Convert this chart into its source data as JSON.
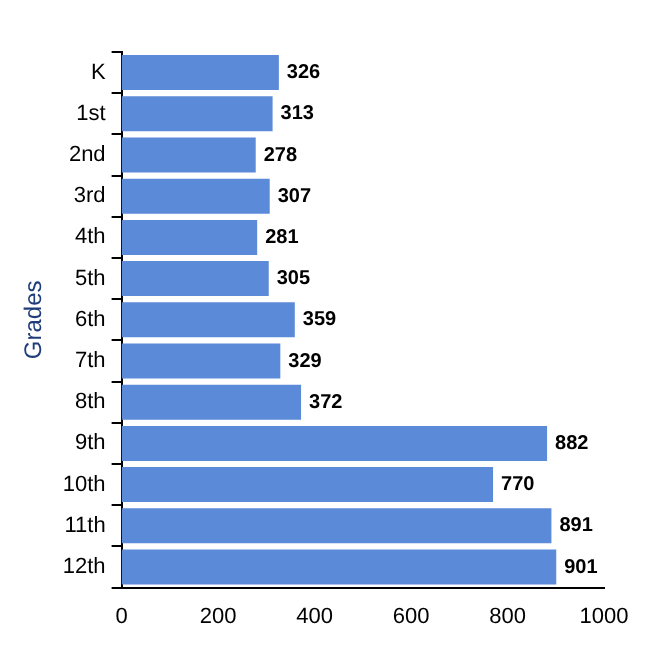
{
  "chart_data": {
    "type": "bar",
    "orientation": "horizontal",
    "ylabel": "Grades",
    "categories": [
      "K",
      "1st",
      "2nd",
      "3rd",
      "4th",
      "5th",
      "6th",
      "7th",
      "8th",
      "9th",
      "10th",
      "11th",
      "12th"
    ],
    "values": [
      326,
      313,
      278,
      307,
      281,
      305,
      359,
      329,
      372,
      882,
      770,
      891,
      901
    ],
    "color": "#5b8ad8",
    "xlim": [
      0,
      1000
    ],
    "xticks": [
      0,
      200,
      400,
      600,
      800,
      1000
    ],
    "grid": false,
    "legend": false,
    "data_labels": true
  }
}
